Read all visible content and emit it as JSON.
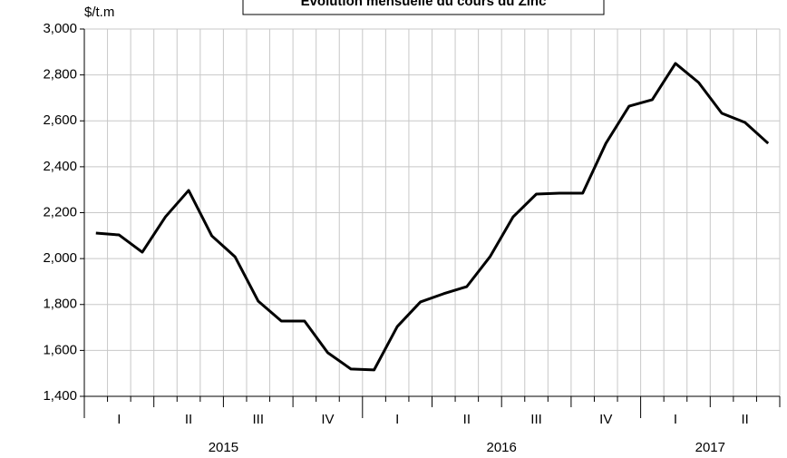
{
  "chart_data": {
    "type": "line",
    "title": "Evolution mensuelle du cours du Zinc",
    "y_label": "$/t.m",
    "categories": [
      null,
      null,
      null,
      null,
      null,
      null,
      null,
      null,
      null,
      null,
      null,
      null,
      null,
      null,
      null,
      null,
      null,
      null,
      null,
      null,
      null,
      null,
      null,
      null,
      null,
      null,
      null,
      null,
      null,
      null
    ],
    "quarters": [
      "I",
      "II",
      "III",
      "IV",
      "I",
      "II",
      "III",
      "IV",
      "I",
      "II"
    ],
    "years": [
      "2015",
      "2016",
      "2017"
    ],
    "series": [
      {
        "name": "Zinc",
        "color": "#000000",
        "values": [
          2111,
          2103,
          2028,
          2182,
          2297,
          2099,
          2008,
          1815,
          1728,
          1728,
          1590,
          1519,
          1515,
          1704,
          1811,
          1847,
          1878,
          2008,
          2182,
          2281,
          2285,
          2285,
          2502,
          2664,
          2692,
          2850,
          2767,
          2633,
          2593,
          2502
        ]
      }
    ],
    "ylim": [
      1400,
      3000
    ],
    "yticks": [
      {
        "value": 1400,
        "label": "1,400"
      },
      {
        "value": 1600,
        "label": "1,600"
      },
      {
        "value": 1800,
        "label": "1,800"
      },
      {
        "value": 2000,
        "label": "2,000"
      },
      {
        "value": 2200,
        "label": "2,200"
      },
      {
        "value": 2400,
        "label": "2,400"
      },
      {
        "value": 2600,
        "label": "2,600"
      },
      {
        "value": 2800,
        "label": "2,800"
      },
      {
        "value": 3000,
        "label": "3,000"
      }
    ],
    "grid": true
  }
}
